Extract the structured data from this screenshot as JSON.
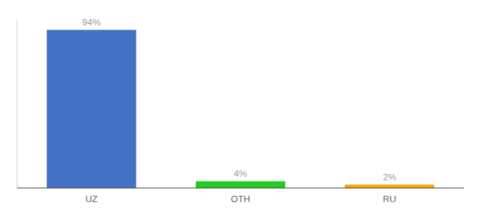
{
  "chart_data": {
    "type": "bar",
    "categories": [
      "UZ",
      "OTH",
      "RU"
    ],
    "values": [
      94,
      4,
      2
    ],
    "value_labels": [
      "94%",
      "4%",
      "2%"
    ],
    "colors": [
      "#4472c4",
      "#22cc22",
      "#f5a800"
    ],
    "ylim": [
      0,
      100
    ],
    "grid": false,
    "data_labels": true,
    "tick_labels": "x"
  }
}
